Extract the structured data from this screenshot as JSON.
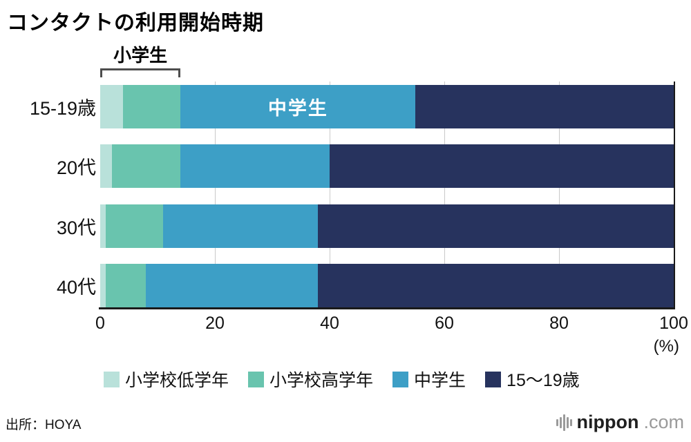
{
  "title": "コンタクトの利用開始時期",
  "annotation": {
    "label": "小学生"
  },
  "bar_inline_label": "中学生",
  "chart_data": {
    "type": "bar",
    "orientation": "horizontal",
    "stacked": true,
    "title": "コンタクトの利用開始時期",
    "categories": [
      "15-19歳",
      "20代",
      "30代",
      "40代"
    ],
    "series": [
      {
        "name": "小学校低学年",
        "color": "#b9e1da",
        "values": [
          4,
          2,
          1,
          1
        ]
      },
      {
        "name": "小学校高学年",
        "color": "#69c4ae",
        "values": [
          10,
          12,
          10,
          7
        ]
      },
      {
        "name": "中学生",
        "color": "#3d9fc6",
        "values": [
          41,
          26,
          27,
          30
        ]
      },
      {
        "name": "15〜19歳",
        "color": "#27335e",
        "values": [
          45,
          60,
          62,
          62
        ]
      }
    ],
    "x_ticks": [
      0,
      20,
      40,
      60,
      80,
      100
    ],
    "xlim": [
      0,
      100
    ],
    "x_unit": "(%)",
    "grid": true,
    "legend_position": "bottom"
  },
  "source": "出所：HOYA",
  "branding": {
    "name": "nippon",
    "tld": ".com"
  }
}
